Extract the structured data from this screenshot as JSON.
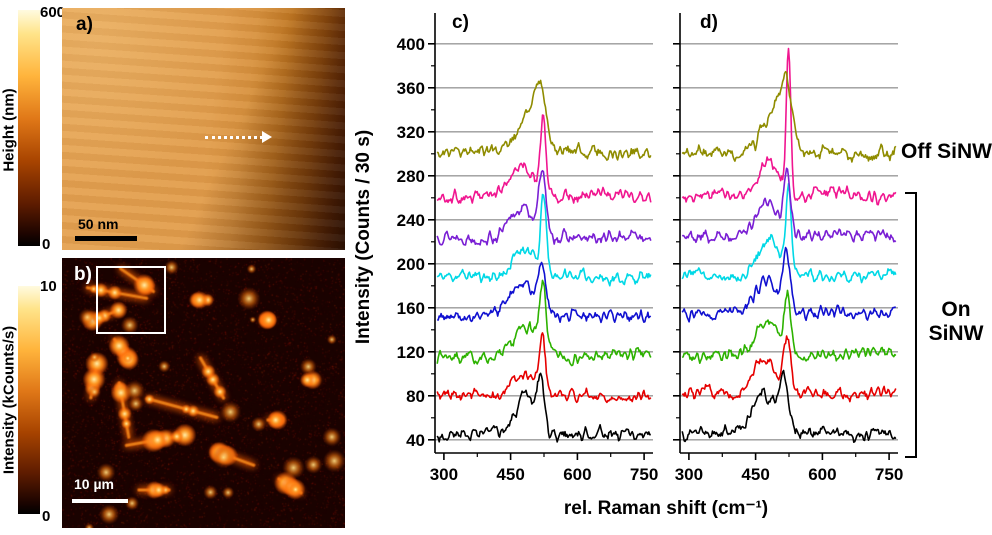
{
  "panel_a": {
    "label": "a)",
    "colorbar": {
      "title": "Height (nm)",
      "max": "600",
      "min": "0"
    },
    "scalebar": "50 nm"
  },
  "panel_b": {
    "label": "b)",
    "colorbar": {
      "title": "Intensity (kCounts/s)",
      "max": "10",
      "min": "0"
    },
    "scalebar": "10 µm"
  },
  "annotations": {
    "off": "Off SiNW",
    "on_line1": "On",
    "on_line2": "SiNW"
  },
  "chart_data": [
    {
      "type": "line",
      "panel": "c)",
      "xlabel": "rel. Raman shift (cm⁻¹)",
      "ylabel": "Intensity (Counts / 30 s)",
      "xlim": [
        280,
        770
      ],
      "ylim": [
        28,
        428
      ],
      "xticks": [
        300,
        450,
        600,
        750
      ],
      "xticks_minor": [
        375,
        525,
        675
      ],
      "yticks": [
        40,
        80,
        120,
        160,
        200,
        240,
        280,
        320,
        360,
        400
      ],
      "grid": true,
      "grid_color": "#9a9a9a",
      "series": [
        {
          "name": "spectrum-1-black",
          "color": "#000000",
          "baseline": 45,
          "noise": 4.5,
          "seed": 3,
          "peaks": [
            {
              "center": 485,
              "amp": 34,
              "width": 22
            },
            {
              "center": 518,
              "amp": 46,
              "width": 8
            }
          ]
        },
        {
          "name": "spectrum-2-red",
          "color": "#e60000",
          "baseline": 80,
          "noise": 4.5,
          "seed": 5,
          "peaks": [
            {
              "center": 478,
              "amp": 22,
              "width": 24
            },
            {
              "center": 521,
              "amp": 52,
              "width": 7
            }
          ]
        },
        {
          "name": "spectrum-3-green",
          "color": "#2db200",
          "baseline": 116,
          "noise": 4.5,
          "seed": 7,
          "peaks": [
            {
              "center": 485,
              "amp": 26,
              "width": 24
            },
            {
              "center": 523,
              "amp": 58,
              "width": 7
            }
          ]
        },
        {
          "name": "spectrum-4-blue",
          "color": "#1010d0",
          "baseline": 152,
          "noise": 4.5,
          "seed": 9,
          "peaks": [
            {
              "center": 478,
              "amp": 30,
              "width": 26
            },
            {
              "center": 520,
              "amp": 48,
              "width": 8
            }
          ]
        },
        {
          "name": "spectrum-5-cyan",
          "color": "#00d8e6",
          "baseline": 188,
          "noise": 4.5,
          "seed": 11,
          "peaks": [
            {
              "center": 480,
              "amp": 28,
              "width": 24
            },
            {
              "center": 524,
              "amp": 72,
              "width": 6
            }
          ]
        },
        {
          "name": "spectrum-6-violet",
          "color": "#7a1fd4",
          "baseline": 224,
          "noise": 4.5,
          "seed": 13,
          "peaks": [
            {
              "center": 476,
              "amp": 26,
              "width": 26
            },
            {
              "center": 521,
              "amp": 58,
              "width": 7
            }
          ]
        },
        {
          "name": "spectrum-7-magenta",
          "color": "#f01690",
          "baseline": 262,
          "noise": 4.5,
          "seed": 15,
          "peaks": [
            {
              "center": 480,
              "amp": 28,
              "width": 24
            },
            {
              "center": 523,
              "amp": 68,
              "width": 6
            }
          ]
        },
        {
          "name": "spectrum-8-olive",
          "color": "#8f8c00",
          "baseline": 302,
          "noise": 5,
          "seed": 17,
          "peaks": [
            {
              "center": 492,
              "amp": 34,
              "width": 28
            },
            {
              "center": 516,
              "amp": 38,
              "width": 13
            }
          ]
        }
      ]
    },
    {
      "type": "line",
      "panel": "d)",
      "xlabel": "rel. Raman shift (cm⁻¹)",
      "ylabel": "Intensity (Counts / 30 s)",
      "xlim": [
        280,
        770
      ],
      "ylim": [
        28,
        428
      ],
      "xticks": [
        300,
        450,
        600,
        750
      ],
      "xticks_minor": [
        375,
        525,
        675
      ],
      "yticks": [
        40,
        80,
        120,
        160,
        200,
        240,
        280,
        320,
        360,
        400
      ],
      "grid": true,
      "grid_color": "#9a9a9a",
      "series": [
        {
          "name": "spectrum-1-black",
          "color": "#000000",
          "baseline": 45,
          "noise": 4.5,
          "seed": 4,
          "peaks": [
            {
              "center": 470,
              "amp": 38,
              "width": 26
            },
            {
              "center": 514,
              "amp": 44,
              "width": 10
            }
          ]
        },
        {
          "name": "spectrum-2-red",
          "color": "#e60000",
          "baseline": 82,
          "noise": 4.5,
          "seed": 6,
          "peaks": [
            {
              "center": 468,
              "amp": 32,
              "width": 26
            },
            {
              "center": 520,
              "amp": 46,
              "width": 8
            }
          ]
        },
        {
          "name": "spectrum-3-green",
          "color": "#2db200",
          "baseline": 118,
          "noise": 4.5,
          "seed": 8,
          "peaks": [
            {
              "center": 478,
              "amp": 28,
              "width": 24
            },
            {
              "center": 522,
              "amp": 52,
              "width": 7
            }
          ]
        },
        {
          "name": "spectrum-4-blue",
          "color": "#1010d0",
          "baseline": 155,
          "noise": 4.5,
          "seed": 10,
          "peaks": [
            {
              "center": 475,
              "amp": 30,
              "width": 26
            },
            {
              "center": 520,
              "amp": 52,
              "width": 8
            }
          ]
        },
        {
          "name": "spectrum-5-cyan",
          "color": "#00d8e6",
          "baseline": 190,
          "noise": 4.5,
          "seed": 12,
          "peaks": [
            {
              "center": 480,
              "amp": 32,
              "width": 24
            },
            {
              "center": 524,
              "amp": 76,
              "width": 6
            }
          ]
        },
        {
          "name": "spectrum-6-violet",
          "color": "#7a1fd4",
          "baseline": 226,
          "noise": 4.5,
          "seed": 14,
          "peaks": [
            {
              "center": 478,
              "amp": 28,
              "width": 24
            },
            {
              "center": 521,
              "amp": 52,
              "width": 7
            }
          ]
        },
        {
          "name": "spectrum-7-magenta",
          "color": "#f01690",
          "baseline": 262,
          "noise": 4.5,
          "seed": 16,
          "peaks": [
            {
              "center": 482,
              "amp": 32,
              "width": 22
            },
            {
              "center": 524,
              "amp": 128,
              "width": 5
            }
          ]
        },
        {
          "name": "spectrum-8-olive",
          "color": "#8f8c00",
          "baseline": 300,
          "noise": 5,
          "seed": 18,
          "peaks": [
            {
              "center": 490,
              "amp": 38,
              "width": 26
            },
            {
              "center": 518,
              "amp": 52,
              "width": 12
            }
          ]
        }
      ]
    }
  ]
}
